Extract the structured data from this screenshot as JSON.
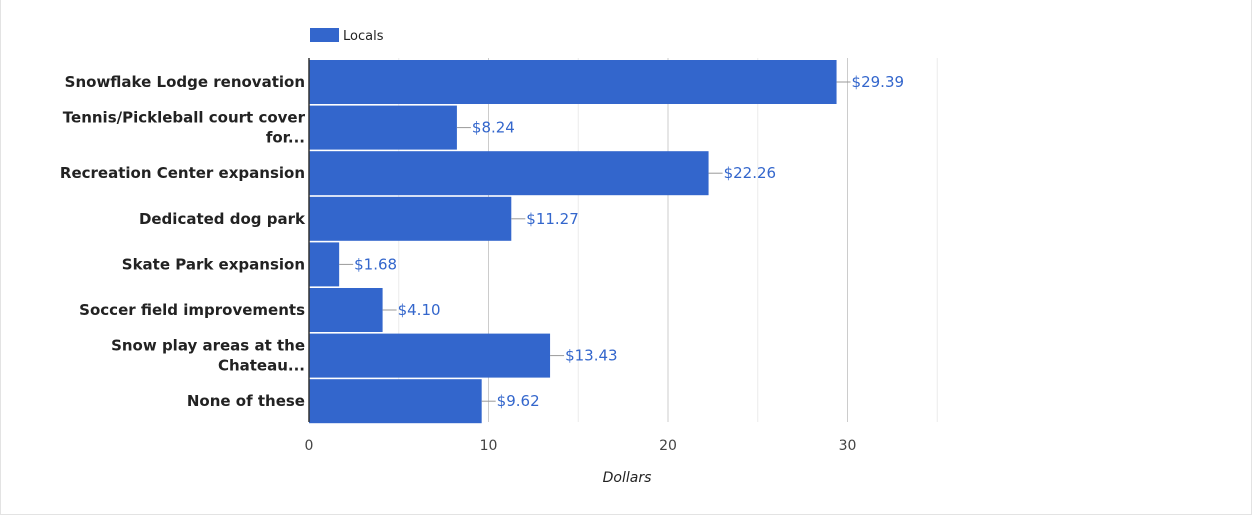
{
  "chart_data": {
    "type": "bar",
    "orientation": "horizontal",
    "categories": [
      [
        "Snowflake Lodge renovation"
      ],
      [
        "Tennis/Pickleball court cover",
        "for..."
      ],
      [
        "Recreation Center expansion"
      ],
      [
        "Dedicated dog park"
      ],
      [
        "Skate Park expansion"
      ],
      [
        "Soccer field improvements"
      ],
      [
        "Snow play areas at the",
        "Chateau..."
      ],
      [
        "None of these"
      ]
    ],
    "series": [
      {
        "name": "Locals",
        "values": [
          29.39,
          8.24,
          22.26,
          11.27,
          1.68,
          4.1,
          13.43,
          9.62
        ],
        "labels": [
          "$29.39",
          "$8.24",
          "$22.26",
          "$11.27",
          "$1.68",
          "$4.10",
          "$13.43",
          "$9.62"
        ]
      }
    ],
    "xlabel": "Dollars",
    "xlim": [
      0,
      35
    ],
    "xticks": [
      0,
      10,
      20,
      30
    ],
    "minor_gridlines_at": [
      5,
      15,
      25,
      35
    ],
    "grid": true,
    "legend_position": "top",
    "colors": {
      "bar": "#3366cc",
      "data_label": "#3366cc",
      "gridline_major": "#cccccc",
      "gridline_minor": "#ebebeb",
      "axis": "#333333"
    }
  }
}
